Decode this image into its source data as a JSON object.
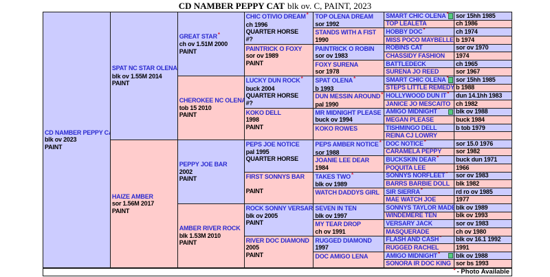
{
  "title": {
    "name_bold": "CD NAMBER PEPPY CAT",
    "suffix": "blk ov. C, PAINT, 2023"
  },
  "legend": {
    "asterisk": "*",
    "label": "- Photo Available"
  },
  "colors": {
    "sire_bg": "#ccccff",
    "dam_bg": "#ffcccc",
    "name_text": "#2b2bd0",
    "asterisk": "#dd2233",
    "marker_green": "#55cc80",
    "border": "#1a1a1a"
  },
  "pedigree": {
    "generations": [
      {
        "column": 1,
        "row_span": 32,
        "cells": [
          {
            "name": "CD NAMBER PEPPY CAT",
            "photo": false,
            "side": "sire",
            "lines": [
              "blk ov 2023",
              "PAINT"
            ]
          }
        ]
      },
      {
        "column": 2,
        "row_span": 16,
        "cells": [
          {
            "name": "SPAT NC STAR OLENA",
            "photo": true,
            "side": "sire",
            "lines": [
              "blk ov 1.55M 2014",
              "PAINT"
            ]
          },
          {
            "name": "HAIZE AMBER",
            "photo": false,
            "side": "dam",
            "lines": [
              "sor 1.56M 2017",
              "PAINT"
            ]
          }
        ]
      },
      {
        "column": 3,
        "row_span": 8,
        "cells": [
          {
            "name": "GREAT STAR",
            "photo": true,
            "side": "sire",
            "lines": [
              "ch ov 1.51M 2000",
              "PAINT"
            ]
          },
          {
            "name": "CHEROKEE NC OLENA",
            "photo": false,
            "side": "dam",
            "lines": [
              "tob 15 2010",
              "PAINT"
            ]
          },
          {
            "name": "PEPPY JOE BAR",
            "photo": false,
            "side": "sire",
            "lines": [
              "2002",
              "PAINT"
            ]
          },
          {
            "name": "AMBER RIVER ROCK",
            "photo": false,
            "side": "dam",
            "lines": [
              "blk 1.53M 2010",
              "PAINT"
            ]
          }
        ]
      },
      {
        "column": 4,
        "row_span": 4,
        "cells": [
          {
            "name": "CHIC OTIVIO DREAM",
            "photo": true,
            "side": "sire",
            "lines": [
              "ch 1996",
              "QUARTER HORSE",
              "#?"
            ]
          },
          {
            "name": "PAINTRICK O FOXY",
            "photo": false,
            "side": "dam",
            "lines": [
              "sor ov 1989",
              "PAINT"
            ]
          },
          {
            "name": "LUCKY DUN ROCK",
            "photo": true,
            "side": "sire",
            "lines": [
              "buck 2004",
              "QUARTER HORSE",
              "#?"
            ]
          },
          {
            "name": "KOKO DELL",
            "photo": false,
            "side": "dam",
            "lines": [
              "1998",
              "PAINT"
            ]
          },
          {
            "name": "PEPS JOE NOTICE",
            "photo": false,
            "side": "sire",
            "lines": [
              "pal 1995",
              "QUARTER HORSE"
            ]
          },
          {
            "name": "FIRST SONNYS BAR",
            "photo": false,
            "side": "dam",
            "lines": [
              "",
              "PAINT"
            ]
          },
          {
            "name": "ROCK SONNY VERSARY",
            "photo": false,
            "side": "sire",
            "lines": [
              "blk ov 2005",
              "PAINT"
            ]
          },
          {
            "name": "RIVER DOC DIAMOND",
            "photo": false,
            "side": "dam",
            "lines": [
              "2005",
              "PAINT"
            ]
          }
        ]
      },
      {
        "column": 5,
        "row_span": 2,
        "cells": [
          {
            "name": "TOP OLENA DREAM",
            "photo": false,
            "side": "sire",
            "lines": [
              "sor 1992"
            ]
          },
          {
            "name": "STANDS WITH A FIST",
            "photo": false,
            "side": "dam",
            "lines": [
              "1990"
            ]
          },
          {
            "name": "PAINTRICK O ROBIN",
            "photo": false,
            "side": "sire",
            "lines": [
              "sor ov 1983"
            ]
          },
          {
            "name": "FOXY SURENA",
            "photo": false,
            "side": "dam",
            "lines": [
              "sor 1978"
            ]
          },
          {
            "name": "SPAT OLENA",
            "photo": true,
            "side": "sire",
            "lines": [
              "b 1993"
            ]
          },
          {
            "name": "DUN MESSIN AROUND",
            "photo": true,
            "side": "dam",
            "lines": [
              "pal 1990"
            ]
          },
          {
            "name": "MR MIDNIGHT PLEASE",
            "photo": false,
            "side": "sire",
            "lines": [
              "buck ov 1994"
            ]
          },
          {
            "name": "KOKO ROWES",
            "photo": false,
            "side": "dam",
            "lines": []
          },
          {
            "name": "PEPS AMBER NOTICE",
            "photo": true,
            "side": "sire",
            "lines": [
              "sor 1988"
            ]
          },
          {
            "name": "JOANIE LEE DEAR",
            "photo": false,
            "side": "dam",
            "lines": [
              "1984"
            ]
          },
          {
            "name": "TAKES TWO",
            "photo": true,
            "side": "sire",
            "lines": [
              "blk ov 1989"
            ]
          },
          {
            "name": "WATCH DADDYS GIRL",
            "photo": false,
            "side": "dam",
            "lines": []
          },
          {
            "name": "SEVEN IN TEN",
            "photo": false,
            "side": "sire",
            "lines": [
              "blk ov 1997"
            ]
          },
          {
            "name": "MY TEAR DROP",
            "photo": false,
            "side": "dam",
            "lines": [
              "ch ov 1991"
            ]
          },
          {
            "name": "RUGGED DIAMOND",
            "photo": false,
            "side": "sire",
            "lines": [
              "1997"
            ]
          },
          {
            "name": "DOC AMIGO LENA",
            "photo": false,
            "side": "dam",
            "lines": []
          }
        ]
      }
    ],
    "generation6": [
      {
        "name": "SMART CHIC OLENA",
        "photo": true,
        "marker": true,
        "side": "sire",
        "info": "sor 15hh 1985"
      },
      {
        "name": "TOP LEALETA",
        "photo": false,
        "marker": false,
        "side": "dam",
        "info": "ch 1986"
      },
      {
        "name": "HOBBY DOC",
        "photo": true,
        "marker": false,
        "side": "sire",
        "info": "ch 1974"
      },
      {
        "name": "MISS POCO MAYBELLE",
        "photo": false,
        "marker": false,
        "side": "dam",
        "info": "b 1974"
      },
      {
        "name": "ROBINS CAT",
        "photo": false,
        "marker": false,
        "side": "sire",
        "info": "sor ov 1970"
      },
      {
        "name": "CHASSIDY FASHION",
        "photo": false,
        "marker": false,
        "side": "dam",
        "info": "1974"
      },
      {
        "name": "BATTLEDECK",
        "photo": false,
        "marker": false,
        "side": "sire",
        "info": "ch 1965"
      },
      {
        "name": "SURENA JO REED",
        "photo": false,
        "marker": false,
        "side": "dam",
        "info": "sor 1967"
      },
      {
        "name": "SMART CHIC OLENA",
        "photo": true,
        "marker": true,
        "side": "sire",
        "info": "sor 15hh 1985"
      },
      {
        "name": "STEPS LITTLE REMEDY",
        "photo": false,
        "marker": false,
        "side": "dam",
        "info": "b 1988"
      },
      {
        "name": "HOLLYWOOD DUN IT",
        "photo": true,
        "marker": false,
        "side": "sire",
        "info": "dun 14.1hh 1983"
      },
      {
        "name": "JANICE JO MESCAITO",
        "photo": false,
        "marker": false,
        "side": "dam",
        "info": "ch 1982"
      },
      {
        "name": "AMIGO MIDNIGHT",
        "photo": true,
        "marker": true,
        "side": "sire",
        "info": "blk ov 1988"
      },
      {
        "name": "MEGAN PLEASE",
        "photo": false,
        "marker": false,
        "side": "dam",
        "info": "buck 1984"
      },
      {
        "name": "TISHMINGO DELL",
        "photo": false,
        "marker": false,
        "side": "sire",
        "info": "b tob 1979"
      },
      {
        "name": "REINA CJ LOWRY",
        "photo": false,
        "marker": false,
        "side": "dam",
        "info": ""
      },
      {
        "name": "DOC NOTICE",
        "photo": true,
        "marker": false,
        "side": "sire",
        "info": "sor 15.0 1976"
      },
      {
        "name": "CARAMELA PEPPY",
        "photo": false,
        "marker": false,
        "side": "dam",
        "info": "sor 1982"
      },
      {
        "name": "BUCKSKIN DEAR",
        "photo": true,
        "marker": false,
        "side": "sire",
        "info": "buck dun 1971"
      },
      {
        "name": "POQUITA LEE",
        "photo": false,
        "marker": false,
        "side": "dam",
        "info": "1966"
      },
      {
        "name": "SONNYS NORFLEET",
        "photo": true,
        "marker": false,
        "side": "sire",
        "info": "sor ov 1983"
      },
      {
        "name": "BARRS BARBIE DOLL",
        "photo": false,
        "marker": false,
        "side": "dam",
        "info": "blk 1982"
      },
      {
        "name": "SIR SIERRA",
        "photo": true,
        "marker": false,
        "side": "sire",
        "info": "rd ro ov 1985"
      },
      {
        "name": "MAE WATCH JOE",
        "photo": false,
        "marker": false,
        "side": "dam",
        "info": "1977"
      },
      {
        "name": "SONNYS TAYLOR MADE",
        "photo": false,
        "marker": false,
        "side": "sire",
        "info": "blk ov 1989"
      },
      {
        "name": "WINDEMERE TEN",
        "photo": false,
        "marker": false,
        "side": "dam",
        "info": "blk ov 1993"
      },
      {
        "name": "VERSARY JACK",
        "photo": false,
        "marker": false,
        "side": "sire",
        "info": "sor ov 1983"
      },
      {
        "name": "MASQUERADE",
        "photo": false,
        "marker": false,
        "side": "dam",
        "info": "ch ov 1980"
      },
      {
        "name": "FLASH AND CASH",
        "photo": true,
        "marker": false,
        "side": "sire",
        "info": "blk ov 16.1 1992"
      },
      {
        "name": "RUGGED RACHEL",
        "photo": false,
        "marker": false,
        "side": "dam",
        "info": "1991"
      },
      {
        "name": "AMIGO MIDNIGHT",
        "photo": true,
        "marker": true,
        "side": "sire",
        "info": "blk ov 1988"
      },
      {
        "name": "SONORA IR DOC KING",
        "photo": false,
        "marker": false,
        "side": "dam",
        "info": "sor bs 1993"
      }
    ]
  }
}
